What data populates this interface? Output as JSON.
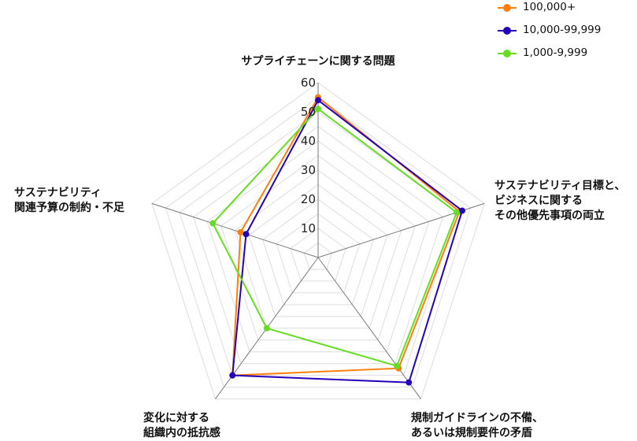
{
  "chart_data": {
    "type": "radar",
    "axes": [
      [
        "サプライチェーンに関する問題"
      ],
      [
        "サステナビリティ目標と、",
        "ビジネスに関する",
        "その他優先事項の両立"
      ],
      [
        "規制ガイドラインの不備、",
        "あるいは規制要件の矛盾"
      ],
      [
        "変化に対する",
        "組織内の抵抗感"
      ],
      [
        "サステナビリティ",
        "関連予算の制約・不足"
      ]
    ],
    "rlim": [
      0,
      60
    ],
    "ticks": [
      "10",
      "20",
      "30",
      "40",
      "50",
      "60"
    ],
    "tick_values": [
      10,
      20,
      30,
      40,
      50,
      60
    ],
    "grid": true,
    "legend_position": "top-right",
    "series": [
      {
        "name": "100,000+",
        "color": "#ff7f0e",
        "values": [
          55,
          51,
          47,
          50,
          28
        ]
      },
      {
        "name": "10,000-99,999",
        "color": "#2600b8",
        "values": [
          54,
          52,
          53,
          50,
          26
        ]
      },
      {
        "name": "1,000-9,999",
        "color": "#66dd22",
        "values": [
          51,
          50,
          46,
          30,
          38
        ]
      }
    ]
  }
}
